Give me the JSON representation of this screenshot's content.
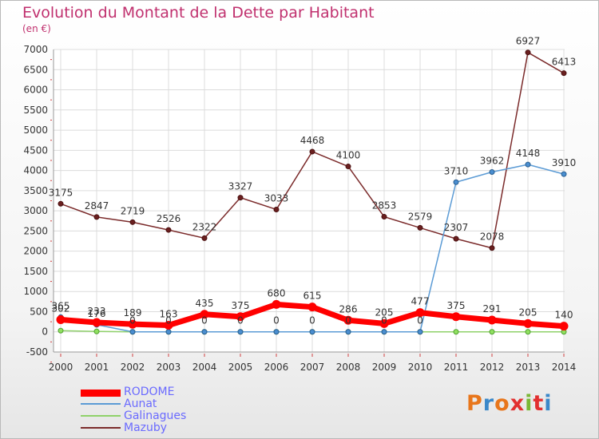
{
  "title": "Evolution du Montant de la Dette par Habitant",
  "subtitle": "(en €)",
  "logo": {
    "text": "Proxiti",
    "colors": [
      "#e8761b",
      "#3b88c9",
      "#e8761b",
      "#e23030",
      "#7ab836",
      "#e23030",
      "#3b88c9"
    ]
  },
  "chart_data": {
    "type": "line",
    "title": "Evolution du Montant de la Dette par Habitant",
    "ylabel": "(en €)",
    "xlabel": "",
    "ylim": [
      -500,
      7000
    ],
    "ytick_step": 500,
    "grid": true,
    "legend_position": "bottom-left",
    "x": [
      "2000",
      "2001",
      "2002",
      "2003",
      "2004",
      "2005",
      "2006",
      "2007",
      "2008",
      "2009",
      "2010",
      "2011",
      "2012",
      "2013",
      "2014"
    ],
    "series": [
      {
        "name": "RODOME",
        "color": "#ff0000",
        "values": [
          302,
          233,
          189,
          163,
          435,
          375,
          680,
          615,
          286,
          205,
          477,
          375,
          291,
          205,
          140
        ],
        "labels": [
          "302",
          "233",
          "189",
          "163",
          "435",
          "375",
          "680",
          "615",
          "286",
          "205",
          "477",
          "375",
          "291",
          "205",
          "140"
        ]
      },
      {
        "name": "Aunat",
        "color": "#5b9bd5",
        "values": [
          365,
          176,
          0,
          0,
          0,
          0,
          0,
          0,
          0,
          0,
          0,
          3710,
          3962,
          4148,
          3910
        ],
        "labels": [
          "365",
          "176",
          "0",
          "0",
          "0",
          "0",
          "0",
          "0",
          "0",
          "0",
          "0",
          "3710",
          "3962",
          "4148",
          "3910"
        ]
      },
      {
        "name": "Galinagues",
        "color": "#8fd16a",
        "values": [
          30,
          10,
          0,
          0,
          0,
          0,
          0,
          0,
          0,
          0,
          0,
          0,
          0,
          0,
          0
        ],
        "labels": [
          "",
          "",
          "",
          "",
          "",
          "",
          "",
          "",
          "",
          "",
          "",
          "",
          "",
          "",
          ""
        ]
      },
      {
        "name": "Mazuby",
        "color": "#7b2b2b",
        "values": [
          3175,
          2847,
          2719,
          2526,
          2322,
          3327,
          3033,
          4468,
          4100,
          2853,
          2579,
          2307,
          2078,
          6927,
          6413
        ],
        "labels": [
          "3175",
          "2847",
          "2719",
          "2526",
          "2322",
          "3327",
          "3033",
          "4468",
          "4100",
          "2853",
          "2579",
          "2307",
          "2078",
          "6927",
          "6413"
        ]
      }
    ]
  }
}
